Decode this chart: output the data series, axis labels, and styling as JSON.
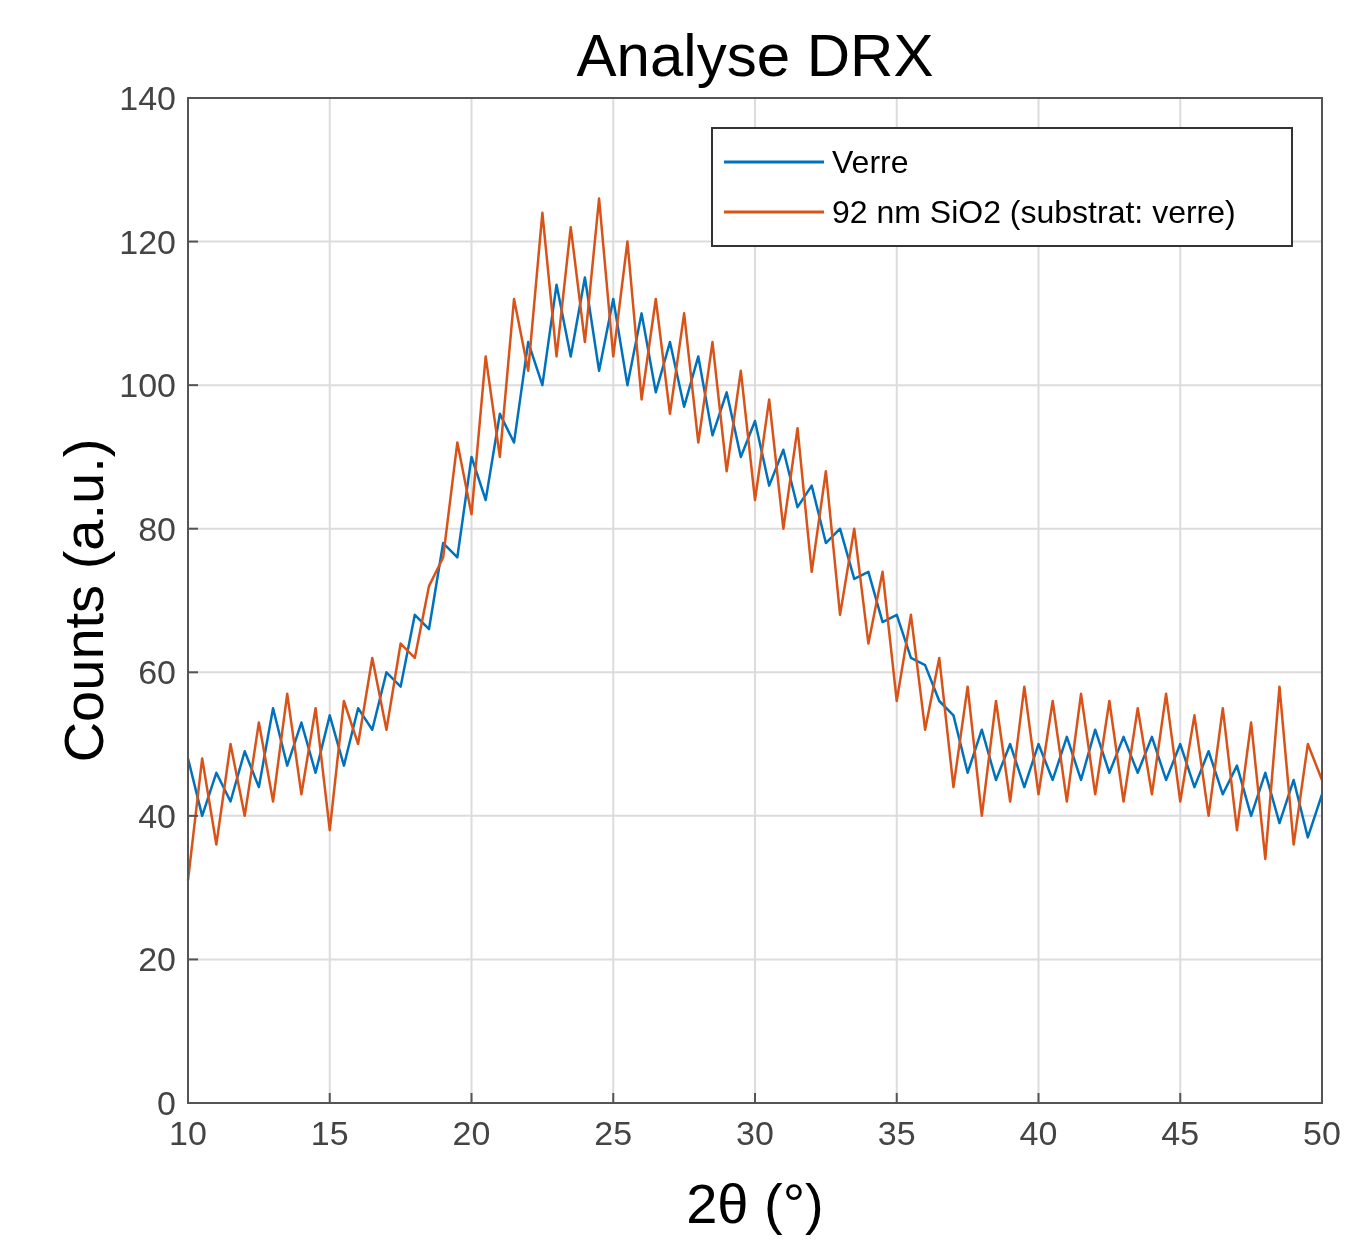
{
  "chart_data": {
    "type": "line",
    "title": "Analyse DRX",
    "xlabel": "2θ (°)",
    "ylabel": "Counts (a.u.)",
    "x": [
      10,
      10.5,
      11,
      11.5,
      12,
      12.5,
      13,
      13.5,
      14,
      14.5,
      15,
      15.5,
      16,
      16.5,
      17,
      17.5,
      18,
      18.5,
      19,
      19.5,
      20,
      20.5,
      21,
      21.5,
      22,
      22.5,
      23,
      23.5,
      24,
      24.5,
      25,
      25.5,
      26,
      26.5,
      27,
      27.5,
      28,
      28.5,
      29,
      29.5,
      30,
      30.5,
      31,
      31.5,
      32,
      32.5,
      33,
      33.5,
      34,
      34.5,
      35,
      35.5,
      36,
      36.5,
      37,
      37.5,
      38,
      38.5,
      39,
      39.5,
      40,
      40.5,
      41,
      41.5,
      42,
      42.5,
      43,
      43.5,
      44,
      44.5,
      45,
      45.5,
      46,
      46.5,
      47,
      47.5,
      48,
      48.5,
      49,
      49.5,
      50
    ],
    "series": [
      {
        "name": "Verre",
        "color": "#0072bd",
        "values": [
          48,
          40,
          46,
          42,
          49,
          44,
          55,
          47,
          53,
          46,
          54,
          47,
          55,
          52,
          60,
          58,
          68,
          66,
          78,
          76,
          90,
          84,
          96,
          92,
          106,
          100,
          114,
          104,
          115,
          102,
          112,
          100,
          110,
          99,
          106,
          97,
          104,
          93,
          99,
          90,
          95,
          86,
          91,
          83,
          86,
          78,
          80,
          73,
          74,
          67,
          68,
          62,
          61,
          56,
          54,
          46,
          52,
          45,
          50,
          44,
          50,
          45,
          51,
          45,
          52,
          46,
          51,
          46,
          51,
          45,
          50,
          44,
          49,
          43,
          47,
          40,
          46,
          39,
          45,
          37,
          43
        ]
      },
      {
        "name": "92 nm SiO2 (substrat: verre)",
        "color": "#d95319",
        "values": [
          31,
          48,
          36,
          50,
          40,
          53,
          42,
          57,
          43,
          55,
          38,
          56,
          50,
          62,
          52,
          64,
          62,
          72,
          76,
          92,
          82,
          104,
          90,
          112,
          102,
          124,
          104,
          122,
          106,
          126,
          104,
          120,
          98,
          112,
          96,
          110,
          92,
          106,
          88,
          102,
          84,
          98,
          80,
          94,
          74,
          88,
          68,
          80,
          64,
          74,
          56,
          68,
          52,
          62,
          44,
          58,
          40,
          56,
          42,
          58,
          43,
          56,
          42,
          57,
          43,
          56,
          42,
          55,
          43,
          57,
          42,
          54,
          40,
          55,
          38,
          53,
          34,
          58,
          36,
          50,
          45
        ]
      }
    ],
    "xlim": [
      10,
      50
    ],
    "xticks": [
      10,
      15,
      20,
      25,
      30,
      35,
      40,
      45,
      50
    ],
    "ylim": [
      0,
      140
    ],
    "yticks": [
      0,
      20,
      40,
      60,
      80,
      100,
      120,
      140
    ],
    "grid": true,
    "legend": "top right",
    "line_style": "solid"
  }
}
